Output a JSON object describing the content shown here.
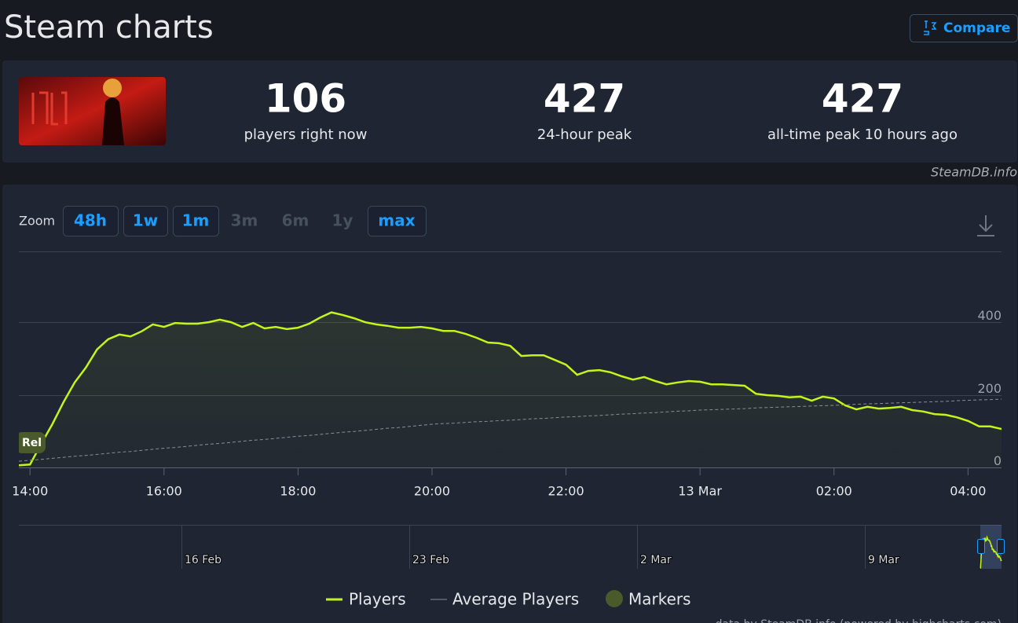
{
  "header": {
    "title": "Steam charts",
    "compare": "Compare"
  },
  "stats": [
    {
      "value": "106",
      "label": "players right now"
    },
    {
      "value": "427",
      "label": "24-hour peak"
    },
    {
      "value": "427",
      "label": "all-time peak 10 hours ago"
    }
  ],
  "source": "SteamDB.info",
  "zoom": {
    "label": "Zoom",
    "buttons": [
      {
        "label": "48h",
        "enabled": true
      },
      {
        "label": "1w",
        "enabled": true
      },
      {
        "label": "1m",
        "enabled": true
      },
      {
        "label": "3m",
        "enabled": false
      },
      {
        "label": "6m",
        "enabled": false
      },
      {
        "label": "1y",
        "enabled": false
      },
      {
        "label": "max",
        "enabled": true
      }
    ]
  },
  "chart_data": {
    "type": "line",
    "x": [
      "13:50",
      "14:00",
      "14:10",
      "14:20",
      "14:30",
      "14:40",
      "14:50",
      "15:00",
      "15:10",
      "15:20",
      "15:30",
      "15:40",
      "15:50",
      "16:00",
      "16:10",
      "16:20",
      "16:30",
      "16:40",
      "16:50",
      "17:00",
      "17:10",
      "17:20",
      "17:30",
      "17:40",
      "17:50",
      "18:00",
      "18:10",
      "18:20",
      "18:30",
      "18:40",
      "18:50",
      "19:00",
      "19:10",
      "19:20",
      "19:30",
      "19:40",
      "19:50",
      "20:00",
      "20:10",
      "20:20",
      "20:30",
      "20:40",
      "20:50",
      "21:00",
      "21:10",
      "21:20",
      "21:30",
      "21:40",
      "21:50",
      "22:00",
      "22:10",
      "22:20",
      "22:30",
      "22:40",
      "22:50",
      "23:00",
      "23:10",
      "23:20",
      "23:30",
      "23:40",
      "23:50",
      "00:00",
      "00:10",
      "00:20",
      "00:30",
      "00:40",
      "00:50",
      "01:00",
      "01:10",
      "01:20",
      "01:30",
      "01:40",
      "01:50",
      "02:00",
      "02:10",
      "02:20",
      "02:30",
      "02:40",
      "02:50",
      "03:00",
      "03:10",
      "03:20",
      "03:30",
      "03:40",
      "03:50",
      "04:00",
      "04:10",
      "04:20",
      "04:30"
    ],
    "xticks": [
      "14:00",
      "16:00",
      "18:00",
      "20:00",
      "22:00",
      {
        "value": "00:00",
        "label": "13 Mar"
      },
      "02:00",
      "04:00"
    ],
    "series": [
      {
        "name": "Players",
        "color": "#c3f51c",
        "values": [
          6,
          8,
          65,
          119,
          180,
          234,
          275,
          325,
          353,
          366,
          361,
          375,
          394,
          387,
          398,
          396,
          396,
          400,
          407,
          400,
          387,
          398,
          383,
          387,
          381,
          385,
          396,
          413,
          427,
          420,
          411,
          400,
          394,
          390,
          385,
          385,
          387,
          383,
          376,
          376,
          368,
          357,
          344,
          342,
          335,
          307,
          309,
          309,
          296,
          283,
          255,
          266,
          268,
          262,
          251,
          242,
          249,
          238,
          229,
          234,
          238,
          236,
          229,
          229,
          227,
          225,
          203,
          199,
          197,
          193,
          195,
          184,
          195,
          190,
          171,
          160,
          167,
          162,
          164,
          167,
          158,
          154,
          147,
          145,
          138,
          128,
          113,
          113,
          106
        ]
      },
      {
        "name": "Average Players",
        "color": "#8a8f98",
        "dashed": true,
        "values": [
          17,
          20,
          22,
          25,
          28,
          31,
          33,
          36,
          39,
          42,
          44,
          47,
          50,
          53,
          55,
          58,
          61,
          64,
          66,
          69,
          72,
          75,
          77,
          80,
          83,
          86,
          88,
          91,
          94,
          97,
          99,
          102,
          105,
          108,
          110,
          113,
          116,
          119,
          121,
          122,
          124,
          126,
          127,
          129,
          130,
          132,
          134,
          135,
          137,
          139,
          140,
          142,
          143,
          145,
          147,
          148,
          150,
          151,
          153,
          155,
          156,
          158,
          159,
          160,
          161,
          162,
          164,
          165,
          166,
          167,
          168,
          169,
          170,
          171,
          172,
          174,
          175,
          176,
          177,
          178,
          179,
          180,
          181,
          182,
          184,
          185,
          186,
          187,
          188
        ]
      }
    ],
    "markers": {
      "name": "Markers",
      "color": "#4a5a2b",
      "items": [
        {
          "x": "13:50",
          "label": "Rel"
        }
      ]
    },
    "ylim": [
      0,
      595
    ],
    "yticks": [
      0,
      200,
      400
    ],
    "grid": true,
    "navigator": {
      "labels": [
        "16 Feb",
        "23 Feb",
        "2 Mar",
        "9 Mar"
      ]
    },
    "credits": "data by SteamDB.info (powered by highcharts.com)"
  }
}
